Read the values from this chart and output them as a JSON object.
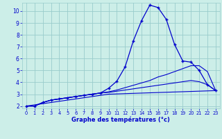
{
  "xlabel": "Graphe des températures (°c)",
  "bg_color": "#cceee8",
  "grid_color": "#99cccc",
  "line_color": "#0000cc",
  "xlim": [
    -0.5,
    23.5
  ],
  "ylim": [
    1.8,
    10.7
  ],
  "xticks": [
    0,
    1,
    2,
    3,
    4,
    5,
    6,
    7,
    8,
    9,
    10,
    11,
    12,
    13,
    14,
    15,
    16,
    17,
    18,
    19,
    20,
    21,
    22,
    23
  ],
  "yticks": [
    2,
    3,
    4,
    5,
    6,
    7,
    8,
    9,
    10
  ],
  "main_x": [
    0,
    1,
    2,
    3,
    4,
    5,
    6,
    7,
    8,
    9,
    10,
    11,
    12,
    13,
    14,
    15,
    16,
    17,
    18,
    19,
    20,
    21,
    22,
    23
  ],
  "main_y": [
    2.0,
    2.0,
    2.3,
    2.5,
    2.6,
    2.7,
    2.8,
    2.9,
    3.0,
    3.1,
    3.5,
    4.1,
    5.3,
    7.5,
    9.2,
    10.5,
    10.3,
    9.3,
    7.2,
    5.8,
    5.7,
    5.0,
    3.8,
    3.3
  ],
  "line2_x": [
    0,
    1,
    2,
    3,
    4,
    5,
    6,
    7,
    8,
    9,
    10,
    11,
    12,
    13,
    14,
    15,
    16,
    17,
    18,
    19,
    20,
    21,
    22,
    23
  ],
  "line2_y": [
    2.0,
    2.0,
    2.3,
    2.5,
    2.6,
    2.7,
    2.8,
    2.9,
    3.0,
    3.1,
    3.2,
    3.35,
    3.55,
    3.75,
    3.95,
    4.15,
    4.45,
    4.65,
    4.9,
    5.15,
    5.4,
    5.4,
    4.9,
    3.3
  ],
  "line3_x": [
    0,
    1,
    2,
    3,
    4,
    5,
    6,
    7,
    8,
    9,
    10,
    11,
    12,
    13,
    14,
    15,
    16,
    17,
    18,
    19,
    20,
    21,
    22,
    23
  ],
  "line3_y": [
    2.0,
    2.0,
    2.3,
    2.5,
    2.6,
    2.7,
    2.8,
    2.9,
    3.0,
    3.1,
    3.15,
    3.25,
    3.35,
    3.45,
    3.55,
    3.65,
    3.75,
    3.85,
    3.95,
    4.05,
    4.15,
    4.05,
    3.8,
    3.3
  ],
  "line4_x": [
    0,
    10,
    23
  ],
  "line4_y": [
    2.0,
    3.0,
    3.3
  ]
}
